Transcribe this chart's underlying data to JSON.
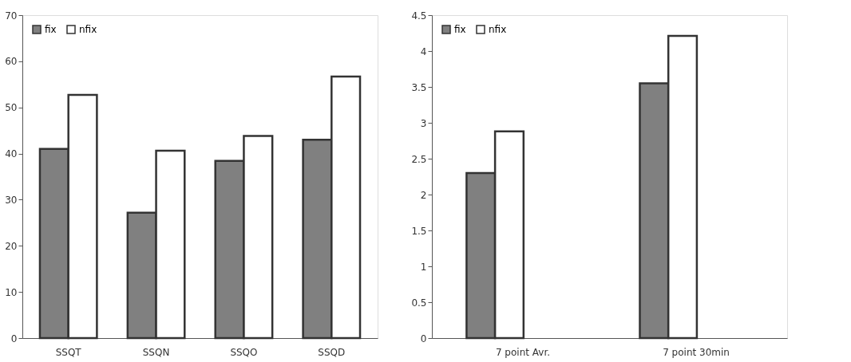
{
  "chart_data": [
    {
      "type": "bar",
      "categories": [
        "SSQT",
        "SSQN",
        "SSQO",
        "SSQD"
      ],
      "series": [
        {
          "name": "fix",
          "color": "#808080",
          "values": [
            41,
            27.2,
            38.4,
            43
          ]
        },
        {
          "name": "nfix",
          "color": "#ffffff",
          "values": [
            52.7,
            40.6,
            43.8,
            56.7
          ]
        }
      ],
      "ylim": [
        0,
        70
      ],
      "yticks": [
        0,
        10,
        20,
        30,
        40,
        50,
        60,
        70
      ],
      "grid": false,
      "legend": "top left"
    },
    {
      "type": "bar",
      "categories": [
        "7 point Avr.",
        "7 point 30min"
      ],
      "series": [
        {
          "name": "fix",
          "color": "#808080",
          "values": [
            2.3,
            3.55
          ]
        },
        {
          "name": "nfix",
          "color": "#ffffff",
          "values": [
            2.88,
            4.21
          ]
        }
      ],
      "ylim": [
        0,
        4.5
      ],
      "yticks": [
        0,
        0.5,
        1,
        1.5,
        2,
        2.5,
        3,
        3.5,
        4,
        4.5
      ],
      "grid": false,
      "legend": "top left"
    }
  ]
}
